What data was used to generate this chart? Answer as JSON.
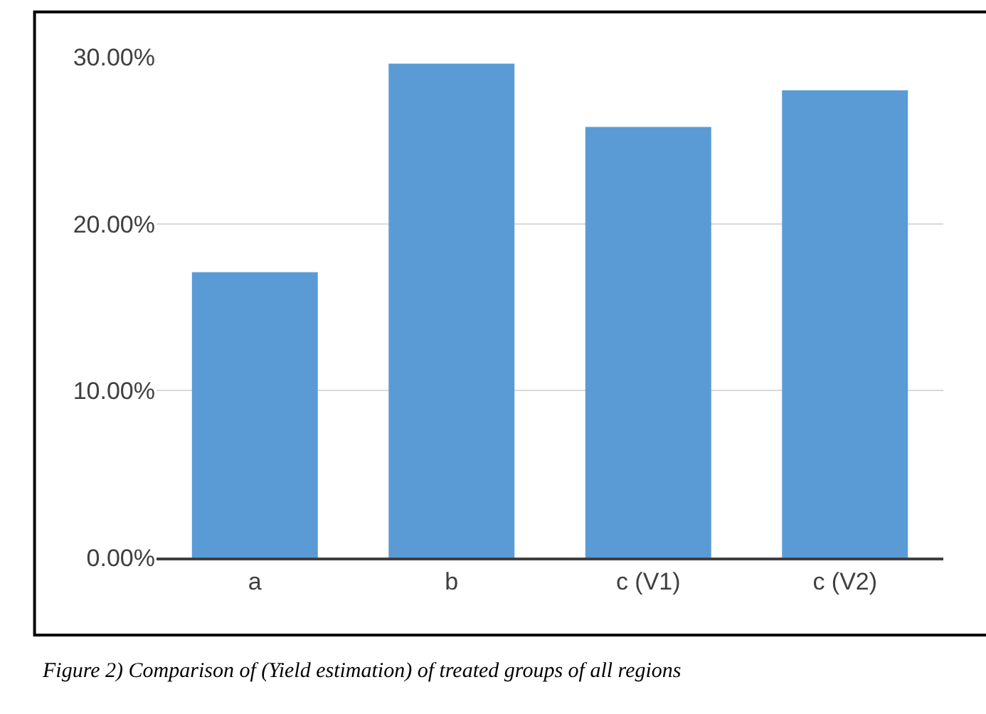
{
  "chart_data": {
    "type": "bar",
    "categories": [
      "a",
      "b",
      "c (V1)",
      "c (V2)"
    ],
    "values": [
      17.1,
      29.6,
      25.8,
      28.0
    ],
    "color": "#5b9bd5",
    "ylim": [
      0,
      30
    ],
    "yticks": [
      {
        "value": 0,
        "label": "0.00%"
      },
      {
        "value": 10,
        "label": "10.00%"
      },
      {
        "value": 20,
        "label": "20.00%"
      },
      {
        "value": 30,
        "label": "30.00%"
      }
    ],
    "grid": "y",
    "legend": false,
    "annotations": [
      "Figure 2) Comparison of (Yield estimation) of treated groups of all regions"
    ]
  }
}
